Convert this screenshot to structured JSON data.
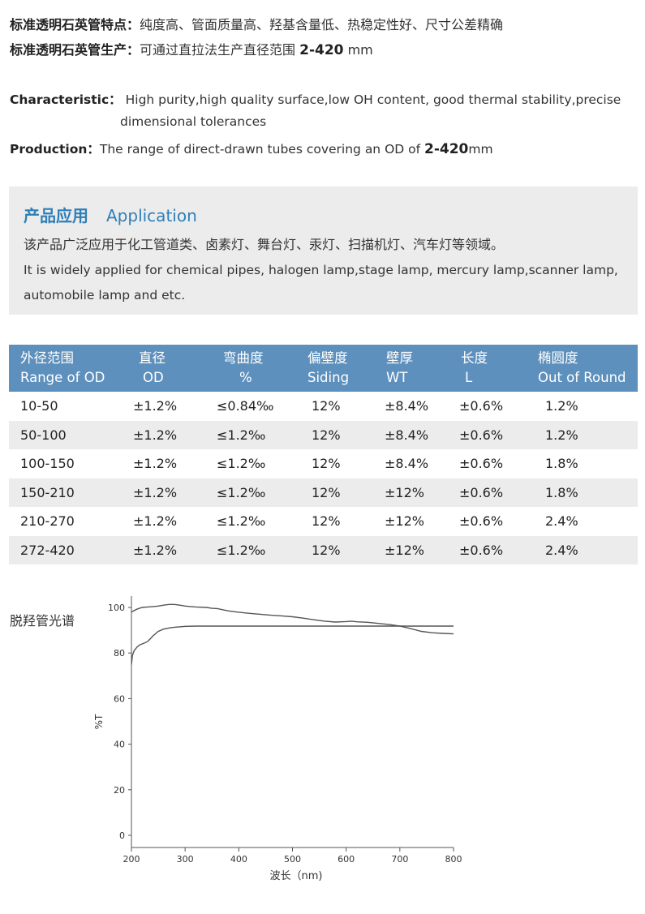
{
  "intro_cn": {
    "features_label": "标准透明石英管特点：",
    "features_text": "纯度高、管面质量高、羟基含量低、热稳定性好、尺寸公差精确",
    "production_label": "标准透明石英管生产：",
    "production_text_before": "可通过直拉法生产直径范围",
    "production_range": "2-420",
    "production_unit": "mm"
  },
  "intro_en": {
    "characteristic_label": "Characteristic：",
    "characteristic_line1": "High purity,high quality surface,low OH content, good thermal stability,precise",
    "characteristic_line2": "dimensional tolerances",
    "production_label": "Production：",
    "production_text_before": "The range of direct-drawn tubes covering an OD of",
    "production_range": "2-420",
    "production_unit": "mm"
  },
  "application": {
    "title_cn": "产品应用",
    "title_en": "Application",
    "text_cn": "该产品广泛应用于化工管道类、卤素灯、舞台灯、汞灯、扫描机灯、汽车灯等领域。",
    "text_en": "It is widely applied for chemical pipes, halogen lamp,stage lamp, mercury lamp,scanner lamp, automobile lamp and etc."
  },
  "table": {
    "headers": [
      {
        "cn": "外径范围",
        "en": "Range of OD"
      },
      {
        "cn": "直径",
        "en": "OD"
      },
      {
        "cn": "弯曲度",
        "en": "%"
      },
      {
        "cn": "偏壁度",
        "en": "Siding"
      },
      {
        "cn": "壁厚",
        "en": "WT"
      },
      {
        "cn": "长度",
        "en": "L"
      },
      {
        "cn": "椭圆度",
        "en": "Out of Round"
      }
    ],
    "rows": [
      [
        "10-50",
        "±1.2%",
        "≤0.84‰",
        "12%",
        "±8.4%",
        "±0.6%",
        "1.2%"
      ],
      [
        "50-100",
        "±1.2%",
        "≤1.2‰",
        "12%",
        "±8.4%",
        "±0.6%",
        "1.2%"
      ],
      [
        "100-150",
        "±1.2%",
        "≤1.2‰",
        "12%",
        "±8.4%",
        "±0.6%",
        "1.8%"
      ],
      [
        "150-210",
        "±1.2%",
        "≤1.2‰",
        "12%",
        "±12%",
        "±0.6%",
        "1.8%"
      ],
      [
        "210-270",
        "±1.2%",
        "≤1.2‰",
        "12%",
        "±12%",
        "±0.6%",
        "2.4%"
      ],
      [
        "272-420",
        "±1.2%",
        "≤1.2‰",
        "12%",
        "±12%",
        "±0.6%",
        "2.4%"
      ]
    ]
  },
  "spectrum_label": "脱羟管光谱",
  "chart_data": {
    "type": "line",
    "title": "",
    "xlabel": "波长（nm)",
    "ylabel": "%T",
    "xlim": [
      200,
      800
    ],
    "ylim": [
      0,
      100
    ],
    "xticks": [
      200,
      300,
      400,
      500,
      600,
      700,
      800
    ],
    "yticks": [
      0,
      20,
      40,
      60,
      80,
      100
    ],
    "grid": false,
    "series": [
      {
        "x": [
          200,
          210,
          220,
          230,
          240,
          250,
          260,
          270,
          280,
          290,
          300,
          320,
          340,
          350,
          360,
          380,
          400,
          420,
          440,
          460,
          480,
          500,
          520,
          540,
          560,
          580,
          600,
          610,
          620,
          640,
          660,
          680,
          700,
          720,
          740,
          760,
          780,
          800
        ],
        "y": [
          98,
          99.2,
          100,
          100.2,
          100.4,
          100.6,
          101,
          101.3,
          101.3,
          101,
          100.6,
          100.2,
          100,
          99.6,
          99.5,
          98.5,
          97.9,
          97.4,
          97,
          96.6,
          96.3,
          95.9,
          95.3,
          94.6,
          94,
          93.6,
          93.8,
          94,
          93.7,
          93.5,
          93,
          92.5,
          91.8,
          90.7,
          89.5,
          88.9,
          88.6,
          88.4
        ]
      },
      {
        "x": [
          200,
          202,
          205,
          210,
          215,
          220,
          225,
          230,
          235,
          240,
          250,
          260,
          270,
          280,
          290,
          300,
          320,
          340,
          360,
          400,
          500,
          600,
          700,
          800
        ],
        "y": [
          75,
          79,
          81,
          82.5,
          83.5,
          84,
          84.5,
          85,
          86.2,
          87.5,
          89.5,
          90.5,
          91,
          91.3,
          91.5,
          91.7,
          91.8,
          91.8,
          91.8,
          91.8,
          91.8,
          91.8,
          91.8,
          91.8
        ]
      }
    ]
  }
}
